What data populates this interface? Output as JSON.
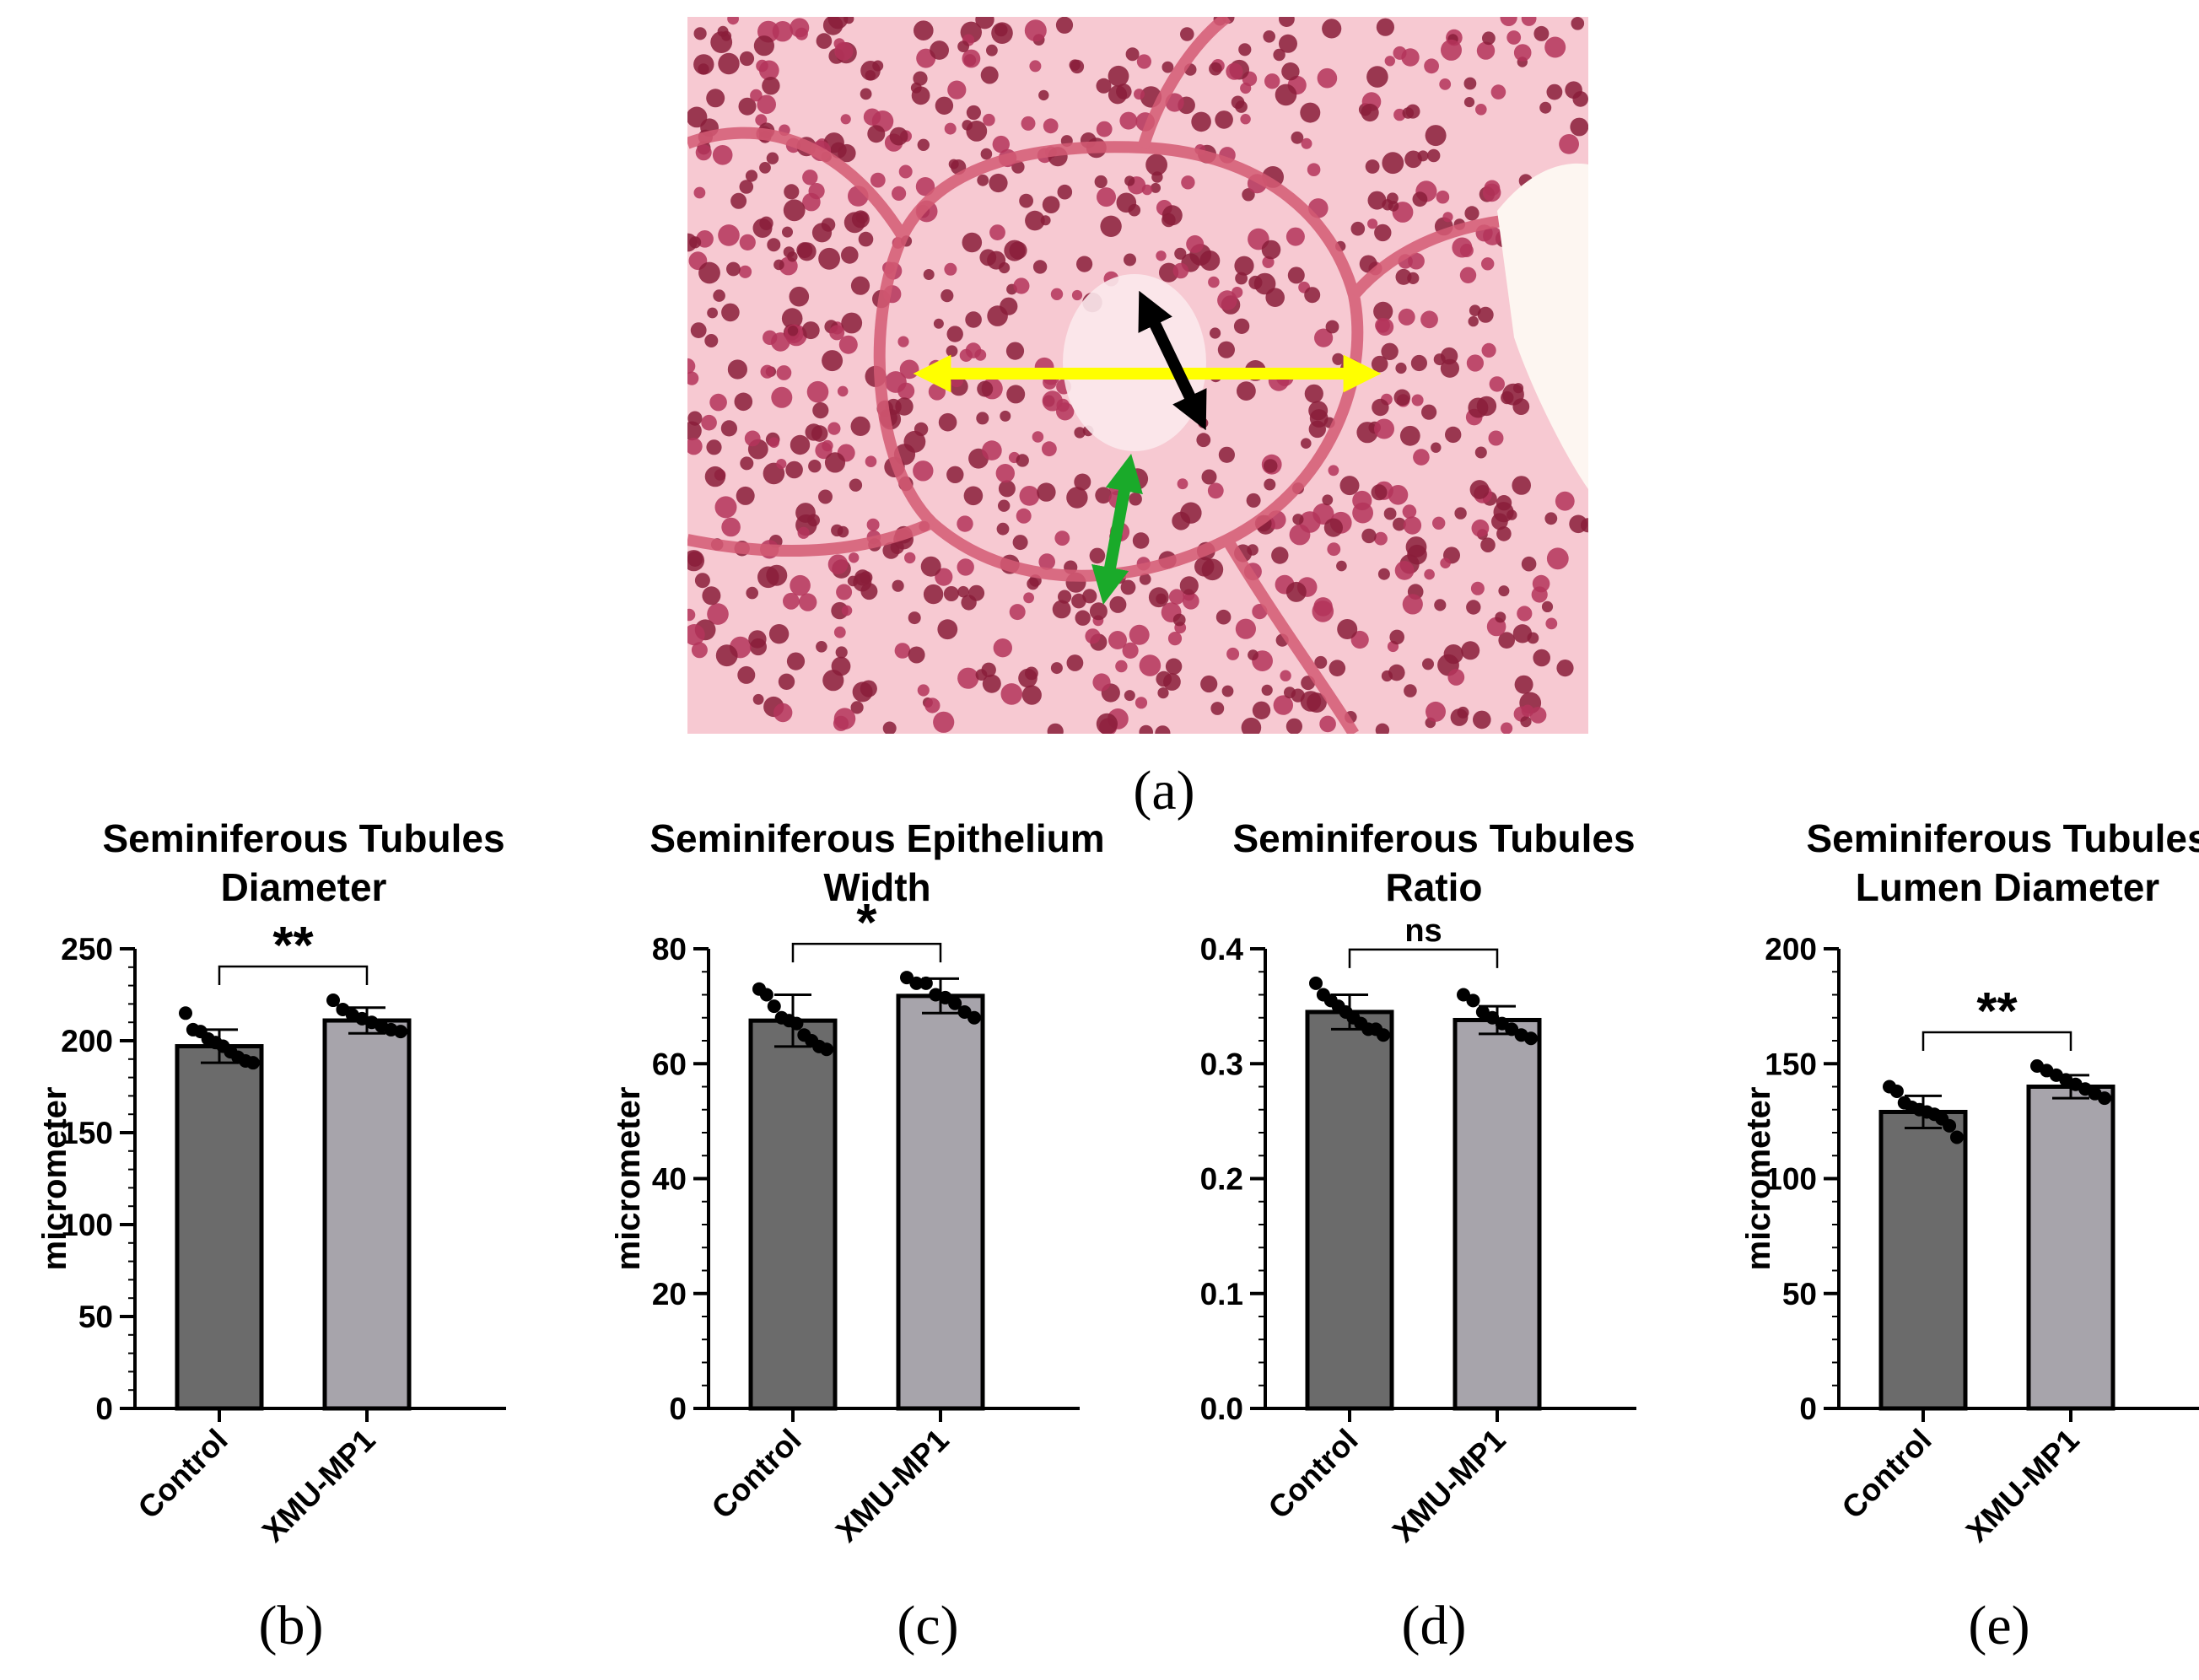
{
  "panel_a": {
    "label": "(a)"
  },
  "chart_data": [
    {
      "type": "bar",
      "panel_label": "(b)",
      "title": [
        "Seminiferous Tubules",
        "Diameter"
      ],
      "ylabel": "micrometer",
      "categories": [
        "Control",
        "XMU-MP1"
      ],
      "values": [
        197,
        211
      ],
      "error": [
        9,
        7
      ],
      "points": [
        [
          215,
          206,
          205,
          201,
          199,
          197,
          194,
          191,
          189,
          188
        ],
        [
          222,
          217,
          214,
          212,
          210,
          208,
          206,
          205
        ]
      ],
      "ylim": [
        0,
        250
      ],
      "yticks": [
        0,
        50,
        100,
        150,
        200,
        250
      ],
      "significance": "**",
      "bar_colors": [
        "#6b6b6b",
        "#a7a4ab"
      ]
    },
    {
      "type": "bar",
      "panel_label": "(c)",
      "title": [
        "Seminiferous Epithelium",
        "Width"
      ],
      "ylabel": "micrometer",
      "categories": [
        "Control",
        "XMU-MP1"
      ],
      "values": [
        67.5,
        71.8
      ],
      "error": [
        4.5,
        3
      ],
      "points": [
        [
          73,
          72,
          70,
          68,
          67.5,
          67,
          65,
          64,
          63,
          62.5
        ],
        [
          75,
          74,
          74,
          72,
          71.5,
          70.5,
          69,
          68
        ]
      ],
      "ylim": [
        0,
        80
      ],
      "yticks": [
        0,
        20,
        40,
        60,
        80
      ],
      "significance": "*",
      "bar_colors": [
        "#6b6b6b",
        "#a7a4ab"
      ]
    },
    {
      "type": "bar",
      "panel_label": "(d)",
      "title": [
        "Seminiferous Tubules",
        "Ratio"
      ],
      "ylabel": "",
      "categories": [
        "Control",
        "XMU-MP1"
      ],
      "values": [
        0.345,
        0.338
      ],
      "error": [
        0.015,
        0.012
      ],
      "points": [
        [
          0.37,
          0.36,
          0.355,
          0.35,
          0.345,
          0.34,
          0.335,
          0.33,
          0.33,
          0.325
        ],
        [
          0.36,
          0.355,
          0.345,
          0.34,
          0.335,
          0.33,
          0.325,
          0.322
        ]
      ],
      "ylim": [
        0,
        0.4
      ],
      "yticks": [
        "0.0",
        "0.1",
        "0.2",
        "0.3",
        "0.4"
      ],
      "significance": "ns",
      "bar_colors": [
        "#6b6b6b",
        "#a7a4ab"
      ]
    },
    {
      "type": "bar",
      "panel_label": "(e)",
      "title": [
        "Seminiferous Tubules",
        "Lumen Diameter"
      ],
      "ylabel": "micrometer",
      "categories": [
        "Control",
        "XMU-MP1"
      ],
      "values": [
        129,
        140
      ],
      "error": [
        7,
        5
      ],
      "points": [
        [
          140,
          138,
          133,
          131,
          130,
          129,
          128,
          126,
          123,
          118
        ],
        [
          149,
          147,
          145,
          143,
          141,
          139,
          137,
          135
        ]
      ],
      "ylim": [
        0,
        200
      ],
      "yticks": [
        0,
        50,
        100,
        150,
        200
      ],
      "significance": "**",
      "bar_colors": [
        "#6b6b6b",
        "#a7a4ab"
      ]
    }
  ]
}
